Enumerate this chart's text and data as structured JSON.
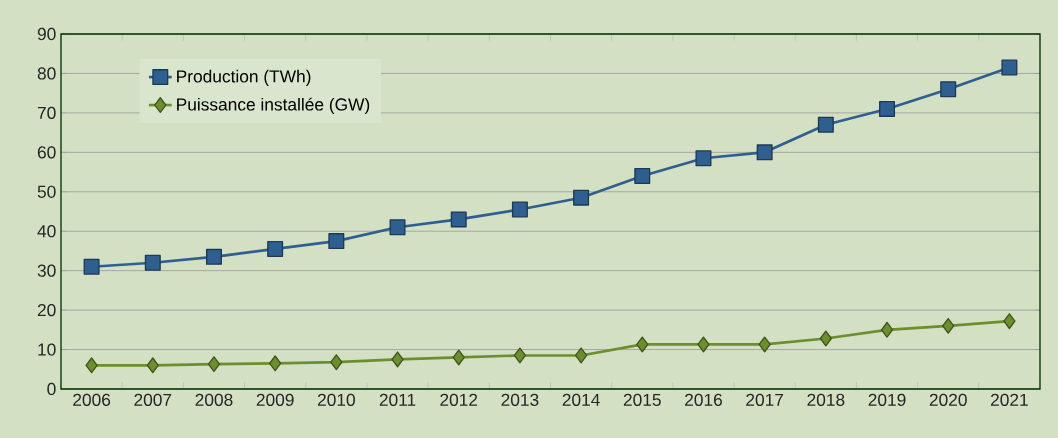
{
  "chart_data": {
    "type": "line",
    "categories": [
      "2006",
      "2007",
      "2008",
      "2009",
      "2010",
      "2011",
      "2012",
      "2013",
      "2014",
      "2015",
      "2016",
      "2017",
      "2018",
      "2019",
      "2020",
      "2021"
    ],
    "series": [
      {
        "name": "Production (TWh)",
        "color": "#2f5f8f",
        "marker": "square",
        "values": [
          31,
          32,
          33.5,
          35.5,
          37.5,
          41,
          43,
          45.5,
          48.5,
          54,
          58.5,
          60,
          67,
          71,
          76,
          81.5
        ]
      },
      {
        "name": "Puissance  installée (GW)",
        "color": "#6b8e2e",
        "marker": "diamond",
        "values": [
          6,
          6,
          6.3,
          6.5,
          6.8,
          7.5,
          8,
          8.5,
          8.5,
          11.3,
          11.3,
          11.3,
          12.8,
          15,
          16,
          17.2
        ]
      }
    ],
    "ylim": [
      0,
      90
    ],
    "yticks": [
      0,
      10,
      20,
      30,
      40,
      50,
      60,
      70,
      80,
      90
    ],
    "grid": "y",
    "legend": "top left",
    "line_style": "solid"
  }
}
